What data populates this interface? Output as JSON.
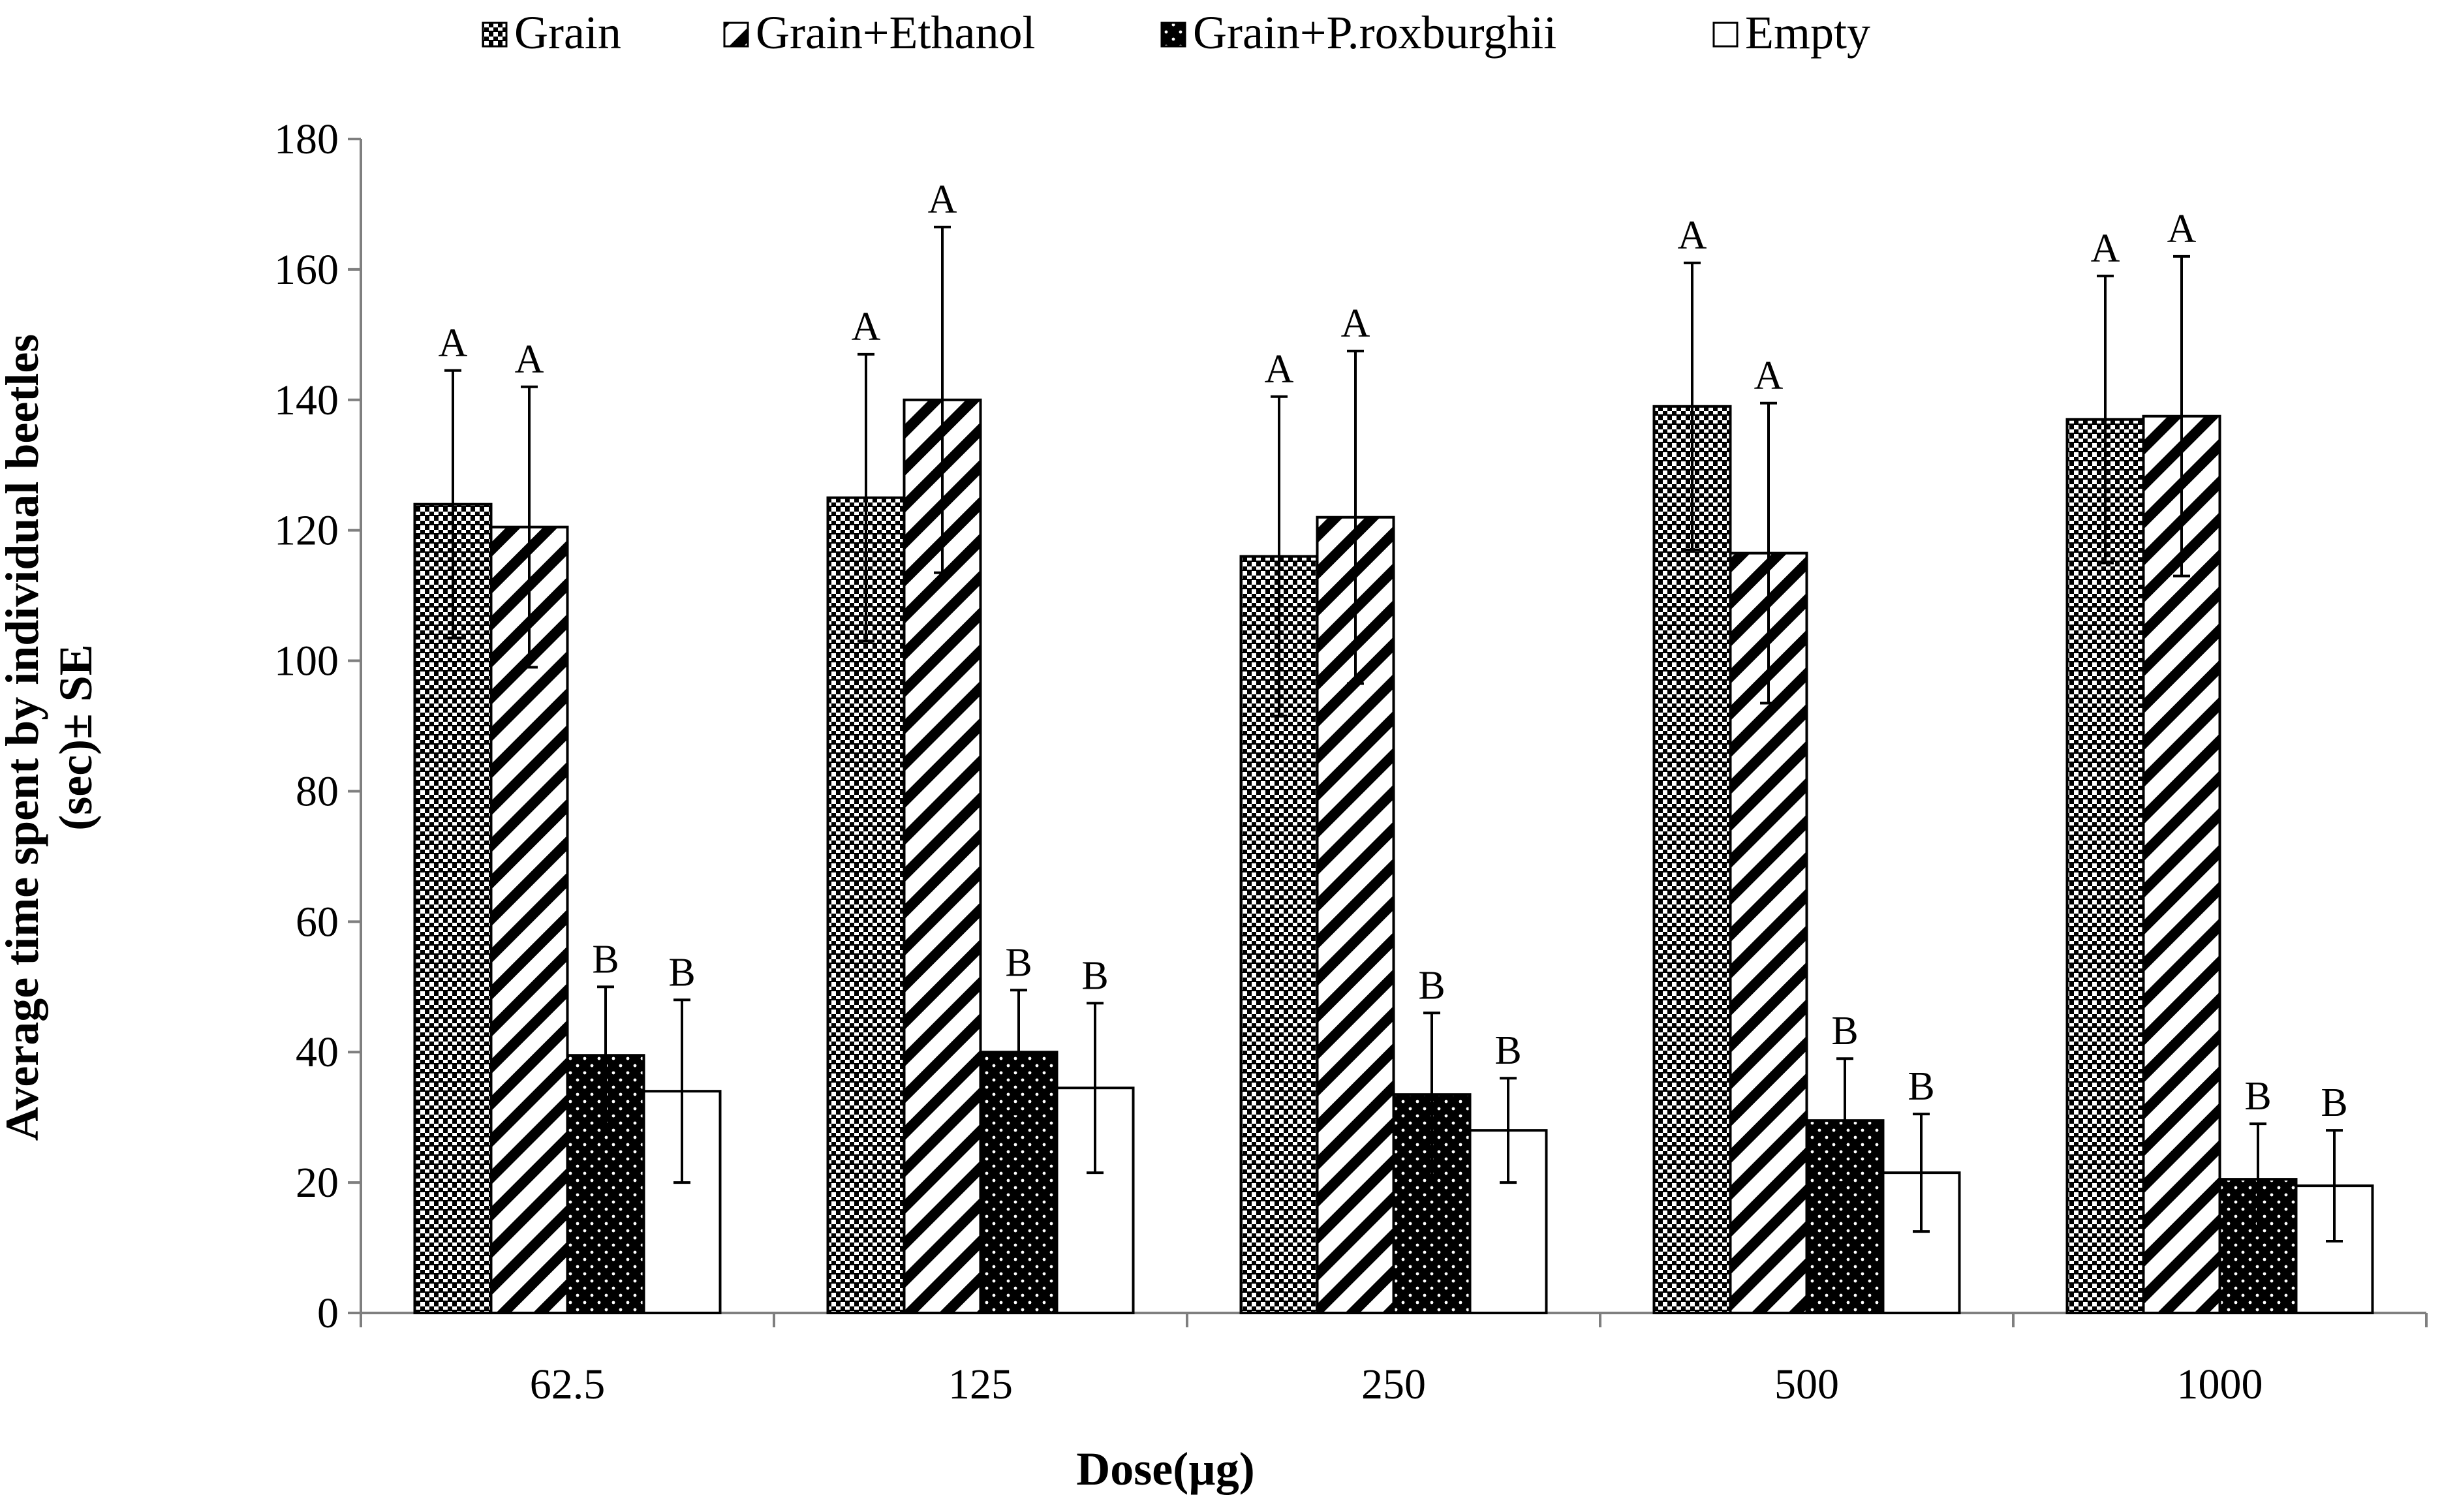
{
  "chart_data": {
    "type": "bar",
    "title": "",
    "xlabel": "Dose(µg)",
    "ylabel_line1": "Average time spent by individual beetles",
    "ylabel_line2": "(sec)± SE",
    "ylim": [
      0,
      180
    ],
    "yticks": [
      0,
      20,
      40,
      60,
      80,
      100,
      120,
      140,
      160,
      180
    ],
    "ytick_labels": [
      "0",
      "20",
      "40",
      "60",
      "80",
      "100",
      "120",
      "140",
      "160",
      "180"
    ],
    "grid": false,
    "legend_position": "top",
    "categories": [
      "62.5",
      "125",
      "250",
      "500",
      "1000"
    ],
    "series": [
      {
        "name": "Grain",
        "pattern": "checker",
        "values": [
          124,
          125,
          116,
          139,
          137
        ],
        "errors": [
          20.5,
          22,
          24.5,
          22,
          22
        ],
        "letters": [
          "A",
          "A",
          "A",
          "A",
          "A"
        ]
      },
      {
        "name": "Grain+Ethanol",
        "pattern": "diagonal",
        "values": [
          120.5,
          140,
          122,
          116.5,
          137.5
        ],
        "errors": [
          21.5,
          26.5,
          25.5,
          23,
          24.5
        ],
        "letters": [
          "A",
          "A",
          "A",
          "A",
          "A"
        ]
      },
      {
        "name": "Grain+P.roxburghii",
        "pattern": "dotted-black",
        "values": [
          39.5,
          40,
          33.5,
          29.5,
          20.5
        ],
        "errors": [
          10.5,
          9.5,
          12.5,
          9.5,
          8.5
        ],
        "letters": [
          "B",
          "B",
          "B",
          "B",
          "B"
        ]
      },
      {
        "name": "Empty",
        "pattern": "empty",
        "values": [
          34,
          34.5,
          28,
          21.5,
          19.5
        ],
        "errors": [
          14,
          13,
          8,
          9,
          8.5
        ],
        "letters": [
          "B",
          "B",
          "B",
          "B",
          "B"
        ]
      }
    ]
  }
}
